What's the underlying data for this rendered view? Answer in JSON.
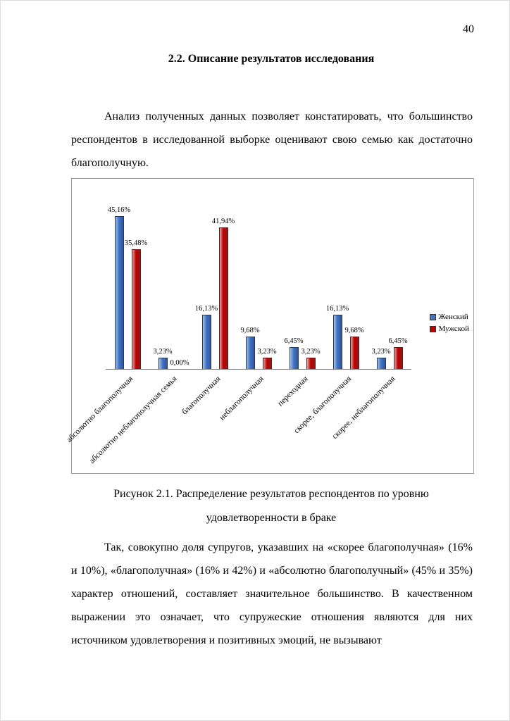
{
  "page_number": "40",
  "heading": "2.2. Описание результатов исследования",
  "paragraphs": {
    "intro": "Анализ полученных данных позволяет констатировать, что большинство респондентов в исследованной выборке оценивают свою семью как достаточно благополучную.",
    "discussion": "Так, совокупно доля супругов, указавших на «скорее благополучная» (16% и 10%), «благополучная» (16% и 42%) и «абсолютно благополучный» (45% и 35%) характер отношений, составляет значительное большинство. В качественном выражении это означает, что супружеские отношения являются для них источником удовлетворения и позитивных эмоций, не вызывают"
  },
  "figure": {
    "caption_line1": "Рисунок 2.1. Распределение результатов респондентов по уровню",
    "caption_line2": "удовлетворенности в браке"
  },
  "chart_data": {
    "type": "bar",
    "categories": [
      "абсолютно благополучная",
      "абсолютно неблагополучная семья",
      "благополучная",
      "неблагополучная",
      "переходная",
      "скорее, благополучная",
      "скорее, неблагополучная"
    ],
    "series": [
      {
        "name": "Женский",
        "color": "#4472c4",
        "values": [
          45.16,
          3.23,
          16.13,
          9.68,
          6.45,
          16.13,
          3.23
        ],
        "labels": [
          "45,16%",
          "3,23%",
          "16,13%",
          "9,68%",
          "6,45%",
          "16,13%",
          "3,23%"
        ]
      },
      {
        "name": "Мужской",
        "color": "#c00000",
        "values": [
          35.48,
          0.0,
          41.94,
          3.23,
          3.23,
          9.68,
          6.45
        ],
        "labels": [
          "35,48%",
          "0,00%",
          "41,94%",
          "3,23%",
          "3,23%",
          "9,68%",
          "6,45%"
        ]
      }
    ],
    "ylim": [
      0,
      50
    ],
    "grid": false,
    "legend_position": "right",
    "value_label_format": "percent-comma"
  }
}
